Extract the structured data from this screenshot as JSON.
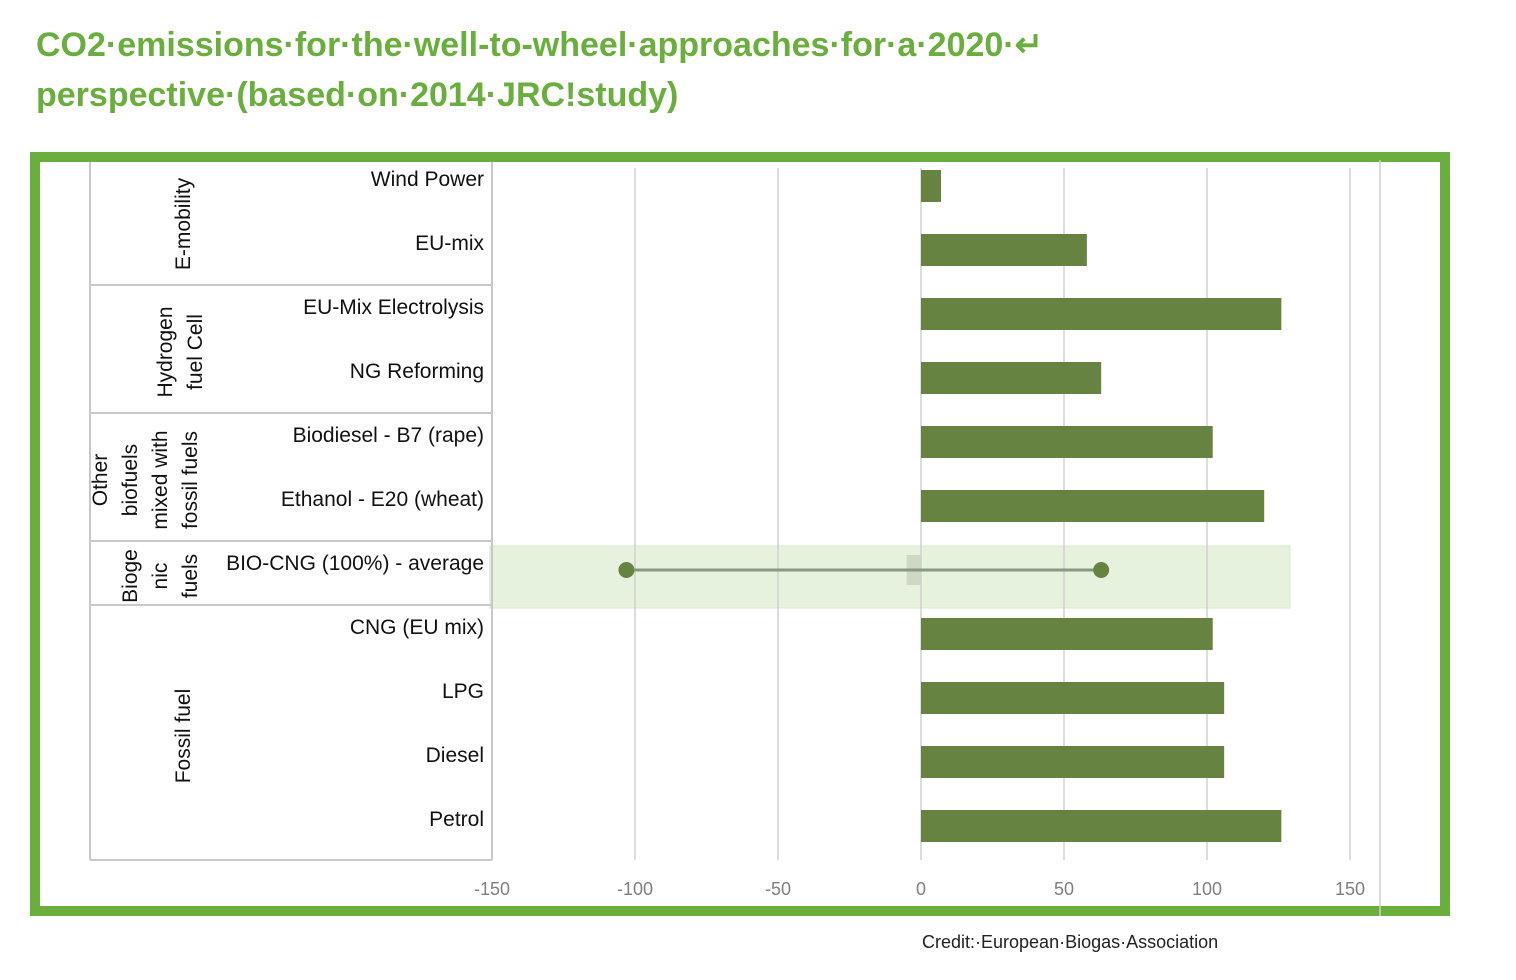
{
  "page": {
    "title_line1": "CO2·emissions·for·the·well-to-wheel·approaches·for·a·2020·↵",
    "title_line2": "perspective·(based·on·2014·JRC!study)",
    "credit": "Credit:·European·Biogas·Association"
  },
  "colors": {
    "accent": "#6aaf3d",
    "bar": "#678342",
    "highlight_band": "#e6f2de",
    "grid": "#d0d0d0",
    "table_line": "#c8c8c8"
  },
  "chart_data": {
    "type": "bar",
    "orientation": "horizontal",
    "title": "CO2 emissions for the well-to-wheel approaches for a 2020 perspective (based on 2014 JRC study)",
    "xlim": [
      -150,
      150
    ],
    "x_ticks": [
      "-150",
      "-100",
      "-50",
      "0",
      "50",
      "100",
      "150"
    ],
    "x_tick_values": [
      -150,
      -100,
      -50,
      0,
      50,
      100,
      150
    ],
    "grid": true,
    "groups": [
      {
        "name": "E-mobility",
        "lines": [
          "E-mobility"
        ],
        "categories": [
          "Wind Power",
          "EU-mix"
        ]
      },
      {
        "name": "Hydrogen fuel Cell",
        "lines": [
          "Hydrogen",
          "fuel Cell"
        ],
        "categories": [
          "EU-Mix Electrolysis",
          "NG Reforming"
        ]
      },
      {
        "name": "Other biofuels mixed with fossil fuels",
        "lines": [
          "Other",
          "biofuels",
          "mixed with",
          "fossil fuels"
        ],
        "categories": [
          "Biodiesel - B7 (rape)",
          "Ethanol - E20 (wheat)"
        ]
      },
      {
        "name": "Biogenic fuels",
        "lines": [
          "Bioge",
          "nic",
          "fuels"
        ],
        "categories": [
          "BIO-CNG (100%) - average"
        ]
      },
      {
        "name": "Fossil fuel",
        "lines": [
          "Fossil fuel"
        ],
        "categories": [
          "CNG (EU mix)",
          "LPG",
          "Diesel",
          "Petrol"
        ]
      }
    ],
    "categories": [
      "Wind Power",
      "EU-mix",
      "EU-Mix Electrolysis",
      "NG Reforming",
      "Biodiesel - B7 (rape)",
      "Ethanol - E20 (wheat)",
      "BIO-CNG (100%) - average",
      "CNG (EU mix)",
      "LPG",
      "Diesel",
      "Petrol"
    ],
    "values": [
      7,
      58,
      126,
      63,
      102,
      120,
      -5,
      102,
      106,
      106,
      126
    ],
    "range": {
      "category": "BIO-CNG (100%) - average",
      "low": -103,
      "high": 63,
      "highlighted": true
    }
  }
}
